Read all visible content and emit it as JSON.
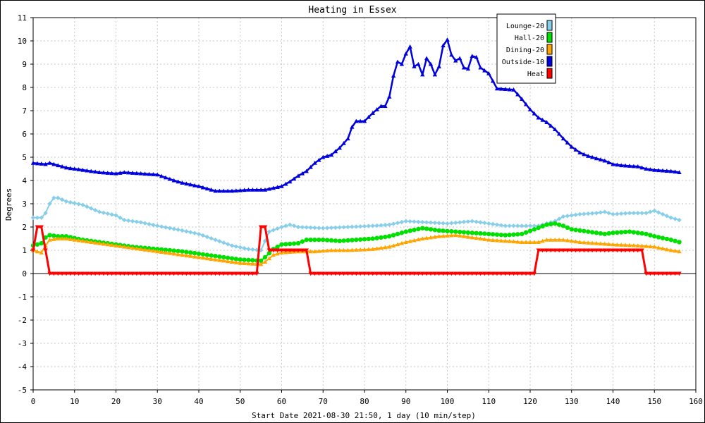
{
  "chart_data": {
    "type": "line",
    "title": "Heating in Essex",
    "xlabel": "Start Date 2021-08-30 21:50, 1 day (10 min/step)",
    "ylabel": "Degrees",
    "xlim": [
      0,
      160
    ],
    "ylim": [
      -5,
      11
    ],
    "xticks": [
      0,
      10,
      20,
      30,
      40,
      50,
      60,
      70,
      80,
      90,
      100,
      110,
      120,
      130,
      140,
      150,
      160
    ],
    "yticks": [
      -5,
      -4,
      -3,
      -2,
      -1,
      0,
      1,
      2,
      3,
      4,
      5,
      6,
      7,
      8,
      9,
      10,
      11
    ],
    "grid": true,
    "legend_position": "top-right",
    "series": [
      {
        "name": "Lounge-20",
        "color": "#87CEEB",
        "marker": "diamond",
        "points": [
          [
            0,
            2.4
          ],
          [
            2,
            2.4
          ],
          [
            3,
            2.6
          ],
          [
            4,
            3.0
          ],
          [
            5,
            3.25
          ],
          [
            6,
            3.25
          ],
          [
            8,
            3.1
          ],
          [
            12,
            2.95
          ],
          [
            16,
            2.65
          ],
          [
            20,
            2.5
          ],
          [
            22,
            2.3
          ],
          [
            26,
            2.2
          ],
          [
            30,
            2.05
          ],
          [
            36,
            1.85
          ],
          [
            40,
            1.7
          ],
          [
            44,
            1.45
          ],
          [
            48,
            1.2
          ],
          [
            52,
            1.05
          ],
          [
            55,
            1.0
          ],
          [
            57,
            1.8
          ],
          [
            60,
            2.0
          ],
          [
            62,
            2.1
          ],
          [
            64,
            2.0
          ],
          [
            70,
            1.95
          ],
          [
            76,
            2.0
          ],
          [
            82,
            2.05
          ],
          [
            86,
            2.1
          ],
          [
            90,
            2.25
          ],
          [
            95,
            2.2
          ],
          [
            100,
            2.15
          ],
          [
            106,
            2.25
          ],
          [
            110,
            2.15
          ],
          [
            114,
            2.05
          ],
          [
            118,
            2.05
          ],
          [
            122,
            2.05
          ],
          [
            126,
            2.25
          ],
          [
            128,
            2.45
          ],
          [
            132,
            2.55
          ],
          [
            136,
            2.6
          ],
          [
            138,
            2.65
          ],
          [
            140,
            2.55
          ],
          [
            144,
            2.6
          ],
          [
            148,
            2.6
          ],
          [
            150,
            2.7
          ],
          [
            154,
            2.4
          ],
          [
            156,
            2.3
          ]
        ]
      },
      {
        "name": "Hall-20",
        "color": "#00E000",
        "marker": "circle",
        "points": [
          [
            0,
            1.2
          ],
          [
            2,
            1.3
          ],
          [
            3,
            1.55
          ],
          [
            4,
            1.65
          ],
          [
            6,
            1.6
          ],
          [
            8,
            1.6
          ],
          [
            12,
            1.45
          ],
          [
            18,
            1.3
          ],
          [
            24,
            1.15
          ],
          [
            30,
            1.05
          ],
          [
            36,
            0.95
          ],
          [
            40,
            0.85
          ],
          [
            46,
            0.7
          ],
          [
            50,
            0.6
          ],
          [
            55,
            0.55
          ],
          [
            56,
            0.7
          ],
          [
            58,
            1.05
          ],
          [
            60,
            1.25
          ],
          [
            64,
            1.3
          ],
          [
            66,
            1.45
          ],
          [
            70,
            1.45
          ],
          [
            74,
            1.4
          ],
          [
            78,
            1.45
          ],
          [
            82,
            1.5
          ],
          [
            86,
            1.6
          ],
          [
            90,
            1.8
          ],
          [
            94,
            1.95
          ],
          [
            98,
            1.85
          ],
          [
            102,
            1.8
          ],
          [
            106,
            1.75
          ],
          [
            110,
            1.7
          ],
          [
            114,
            1.65
          ],
          [
            118,
            1.7
          ],
          [
            121,
            1.9
          ],
          [
            124,
            2.1
          ],
          [
            126,
            2.15
          ],
          [
            128,
            2.05
          ],
          [
            130,
            1.9
          ],
          [
            134,
            1.8
          ],
          [
            138,
            1.7
          ],
          [
            140,
            1.75
          ],
          [
            144,
            1.8
          ],
          [
            148,
            1.7
          ],
          [
            150,
            1.6
          ],
          [
            154,
            1.45
          ],
          [
            156,
            1.35
          ]
        ]
      },
      {
        "name": "Dining-20",
        "color": "#FFA500",
        "marker": "triangle",
        "points": [
          [
            0,
            1.0
          ],
          [
            2,
            0.9
          ],
          [
            3,
            1.2
          ],
          [
            4,
            1.45
          ],
          [
            6,
            1.5
          ],
          [
            8,
            1.5
          ],
          [
            12,
            1.4
          ],
          [
            18,
            1.25
          ],
          [
            24,
            1.1
          ],
          [
            30,
            0.95
          ],
          [
            36,
            0.8
          ],
          [
            40,
            0.7
          ],
          [
            46,
            0.55
          ],
          [
            50,
            0.45
          ],
          [
            55,
            0.4
          ],
          [
            56,
            0.5
          ],
          [
            58,
            0.8
          ],
          [
            60,
            0.9
          ],
          [
            64,
            0.95
          ],
          [
            68,
            0.95
          ],
          [
            72,
            1.0
          ],
          [
            76,
            1.0
          ],
          [
            82,
            1.05
          ],
          [
            86,
            1.15
          ],
          [
            90,
            1.35
          ],
          [
            94,
            1.5
          ],
          [
            98,
            1.6
          ],
          [
            102,
            1.65
          ],
          [
            106,
            1.55
          ],
          [
            110,
            1.45
          ],
          [
            114,
            1.4
          ],
          [
            118,
            1.35
          ],
          [
            122,
            1.35
          ],
          [
            124,
            1.45
          ],
          [
            128,
            1.45
          ],
          [
            132,
            1.35
          ],
          [
            136,
            1.3
          ],
          [
            140,
            1.25
          ],
          [
            146,
            1.2
          ],
          [
            150,
            1.15
          ],
          [
            154,
            1.0
          ],
          [
            156,
            0.95
          ]
        ]
      },
      {
        "name": "Outside-10",
        "color": "#0000DD",
        "marker": "triangle",
        "points": [
          [
            0,
            4.75
          ],
          [
            3,
            4.7
          ],
          [
            4,
            4.75
          ],
          [
            6,
            4.65
          ],
          [
            8,
            4.55
          ],
          [
            10,
            4.5
          ],
          [
            12,
            4.45
          ],
          [
            16,
            4.35
          ],
          [
            20,
            4.3
          ],
          [
            22,
            4.35
          ],
          [
            26,
            4.3
          ],
          [
            30,
            4.25
          ],
          [
            34,
            4.0
          ],
          [
            36,
            3.9
          ],
          [
            40,
            3.75
          ],
          [
            42,
            3.65
          ],
          [
            44,
            3.55
          ],
          [
            48,
            3.55
          ],
          [
            52,
            3.6
          ],
          [
            56,
            3.6
          ],
          [
            60,
            3.75
          ],
          [
            62,
            3.95
          ],
          [
            64,
            4.2
          ],
          [
            66,
            4.4
          ],
          [
            68,
            4.75
          ],
          [
            70,
            5.0
          ],
          [
            72,
            5.1
          ],
          [
            74,
            5.4
          ],
          [
            76,
            5.8
          ],
          [
            77,
            6.3
          ],
          [
            78,
            6.55
          ],
          [
            80,
            6.55
          ],
          [
            82,
            6.9
          ],
          [
            84,
            7.2
          ],
          [
            85,
            7.2
          ],
          [
            86,
            7.6
          ],
          [
            87,
            8.5
          ],
          [
            88,
            9.1
          ],
          [
            89,
            9.0
          ],
          [
            90,
            9.45
          ],
          [
            91,
            9.75
          ],
          [
            92,
            8.9
          ],
          [
            93,
            9.0
          ],
          [
            94,
            8.55
          ],
          [
            95,
            9.25
          ],
          [
            96,
            9.0
          ],
          [
            97,
            8.55
          ],
          [
            98,
            8.9
          ],
          [
            99,
            9.8
          ],
          [
            100,
            10.05
          ],
          [
            101,
            9.4
          ],
          [
            102,
            9.15
          ],
          [
            103,
            9.25
          ],
          [
            104,
            8.85
          ],
          [
            105,
            8.8
          ],
          [
            106,
            9.35
          ],
          [
            107,
            9.3
          ],
          [
            108,
            8.85
          ],
          [
            110,
            8.6
          ],
          [
            112,
            7.95
          ],
          [
            116,
            7.9
          ],
          [
            118,
            7.5
          ],
          [
            120,
            7.05
          ],
          [
            122,
            6.7
          ],
          [
            124,
            6.5
          ],
          [
            126,
            6.2
          ],
          [
            128,
            5.8
          ],
          [
            130,
            5.45
          ],
          [
            132,
            5.2
          ],
          [
            134,
            5.05
          ],
          [
            136,
            4.95
          ],
          [
            138,
            4.85
          ],
          [
            140,
            4.7
          ],
          [
            142,
            4.65
          ],
          [
            146,
            4.6
          ],
          [
            148,
            4.5
          ],
          [
            150,
            4.45
          ],
          [
            154,
            4.4
          ],
          [
            156,
            4.35
          ]
        ]
      },
      {
        "name": "Heat",
        "color": "#FF0000",
        "marker": "triangle-down",
        "points": [
          [
            0,
            1.0
          ],
          [
            1,
            2.0
          ],
          [
            2,
            2.0
          ],
          [
            4,
            0
          ],
          [
            54,
            0
          ],
          [
            55,
            2.0
          ],
          [
            56,
            2.0
          ],
          [
            57,
            1.0
          ],
          [
            66,
            1.0
          ],
          [
            67,
            0
          ],
          [
            121,
            0
          ],
          [
            122,
            1.0
          ],
          [
            147,
            1.0
          ],
          [
            148,
            0
          ],
          [
            156,
            0
          ]
        ]
      }
    ]
  }
}
